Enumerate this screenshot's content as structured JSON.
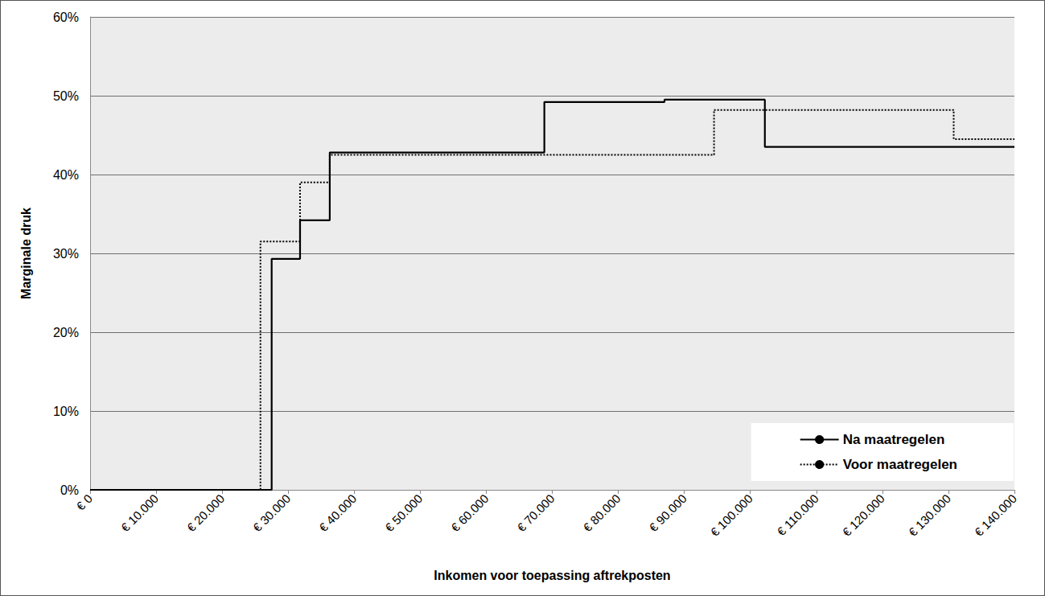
{
  "chart_data": {
    "type": "step",
    "x_label": "Inkomen voor toepassing aftrekposten",
    "y_label": "Marginale druk",
    "xlim": [
      0,
      140000
    ],
    "xticks": [
      {
        "value": 0,
        "label": "€ 0"
      },
      {
        "value": 10000,
        "label": "€ 10.000"
      },
      {
        "value": 20000,
        "label": "€ 20.000"
      },
      {
        "value": 30000,
        "label": "€ 30.000"
      },
      {
        "value": 40000,
        "label": "€ 40.000"
      },
      {
        "value": 50000,
        "label": "€ 50.000"
      },
      {
        "value": 60000,
        "label": "€ 60.000"
      },
      {
        "value": 70000,
        "label": "€ 70.000"
      },
      {
        "value": 80000,
        "label": "€ 80.000"
      },
      {
        "value": 90000,
        "label": "€ 90.000"
      },
      {
        "value": 100000,
        "label": "€ 100.000"
      },
      {
        "value": 110000,
        "label": "€ 110.000"
      },
      {
        "value": 120000,
        "label": "€ 120.000"
      },
      {
        "value": 130000,
        "label": "€ 130.000"
      },
      {
        "value": 140000,
        "label": "€ 140.000"
      }
    ],
    "ylim": [
      0,
      60
    ],
    "yticks": [
      {
        "value": 0,
        "label": "0%"
      },
      {
        "value": 10,
        "label": "10%"
      },
      {
        "value": 20,
        "label": "20%"
      },
      {
        "value": 30,
        "label": "30%"
      },
      {
        "value": 40,
        "label": "40%"
      },
      {
        "value": 50,
        "label": "50%"
      },
      {
        "value": 60,
        "label": "60%"
      }
    ],
    "grid": true,
    "legend": "lower right",
    "series": [
      {
        "name": "Na maatregelen",
        "color": "#000000",
        "line_style": "solid",
        "x": [
          0,
          27500,
          31800,
          36300,
          68800,
          87000,
          102200,
          140000
        ],
        "values": [
          0,
          29.3,
          34.2,
          42.8,
          49.2,
          49.5,
          43.5,
          43.5
        ]
      },
      {
        "name": "Voor maatregelen",
        "color": "#000000",
        "line_style": "dotted",
        "x": [
          0,
          25800,
          31800,
          36300,
          94500,
          130800,
          140000
        ],
        "values": [
          0,
          31.5,
          39.0,
          42.5,
          48.2,
          44.5,
          44.5
        ]
      }
    ]
  }
}
